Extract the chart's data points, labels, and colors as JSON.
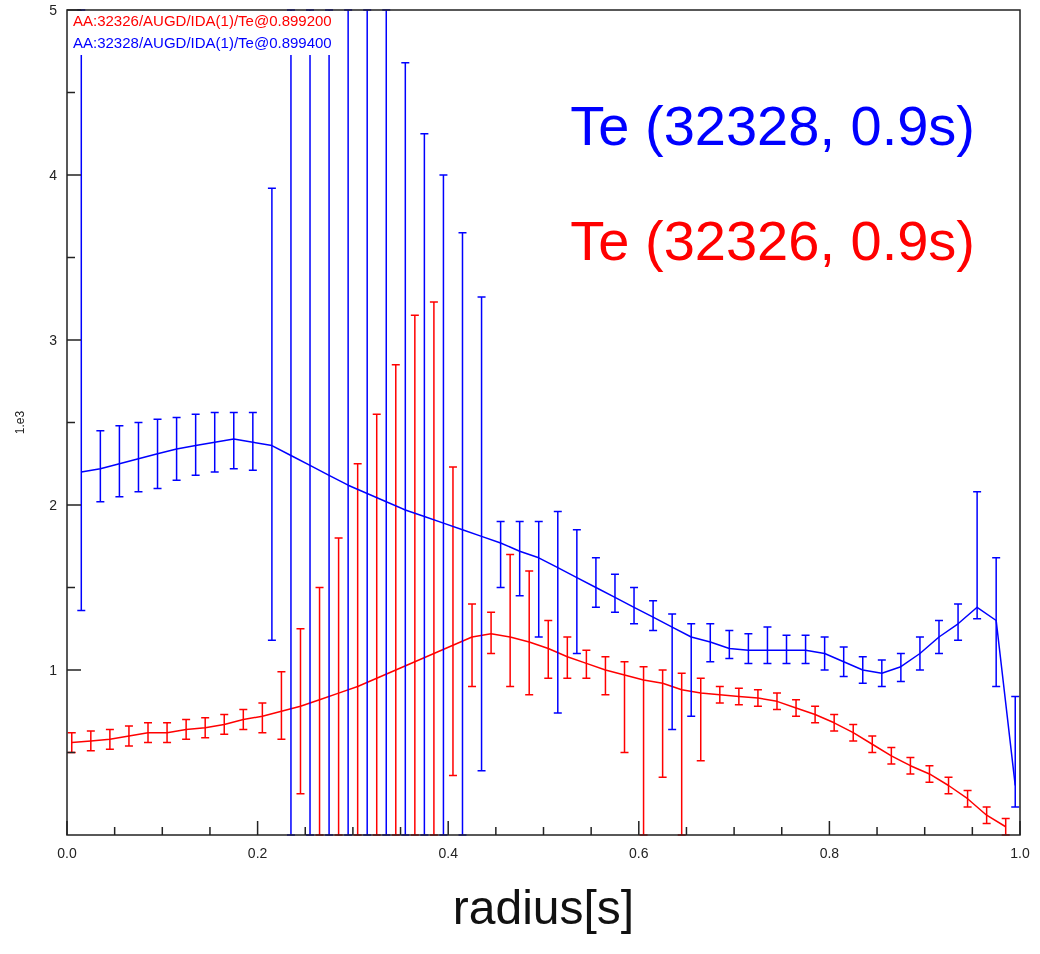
{
  "chart_data": {
    "type": "line",
    "xlabel": "radius[s]",
    "ylabel": "1.e3",
    "annotations": [
      "Te (32328, 0.9s)",
      "Te (32326, 0.9s)"
    ],
    "series": [
      {
        "name": "AA:32326/AUGD/IDA(1)/Te@0.899200",
        "color": "#ff0000",
        "x": [
          0.005,
          0.025,
          0.045,
          0.065,
          0.085,
          0.105,
          0.125,
          0.145,
          0.165,
          0.185,
          0.205,
          0.225,
          0.245,
          0.265,
          0.285,
          0.305,
          0.325,
          0.345,
          0.365,
          0.385,
          0.405,
          0.425,
          0.445,
          0.465,
          0.485,
          0.505,
          0.525,
          0.545,
          0.565,
          0.585,
          0.605,
          0.625,
          0.645,
          0.665,
          0.685,
          0.705,
          0.725,
          0.745,
          0.765,
          0.785,
          0.805,
          0.825,
          0.845,
          0.865,
          0.885,
          0.905,
          0.925,
          0.945,
          0.965,
          0.985
        ],
        "values": [
          0.56,
          0.57,
          0.58,
          0.6,
          0.62,
          0.62,
          0.64,
          0.65,
          0.67,
          0.7,
          0.72,
          0.75,
          0.78,
          0.82,
          0.86,
          0.9,
          0.95,
          1.0,
          1.05,
          1.1,
          1.15,
          1.2,
          1.22,
          1.2,
          1.17,
          1.13,
          1.08,
          1.04,
          1.0,
          0.97,
          0.94,
          0.92,
          0.88,
          0.86,
          0.85,
          0.84,
          0.83,
          0.81,
          0.77,
          0.73,
          0.68,
          0.62,
          0.55,
          0.48,
          0.42,
          0.37,
          0.3,
          0.22,
          0.12,
          0.05
        ],
        "errors": [
          0.06,
          0.06,
          0.06,
          0.06,
          0.06,
          0.06,
          0.06,
          0.06,
          0.06,
          0.06,
          [
            0.62,
            0.8
          ],
          [
            0.58,
            0.99
          ],
          [
            0.25,
            1.25
          ],
          [
            0,
            1.5
          ],
          [
            0,
            1.8
          ],
          [
            0,
            2.25
          ],
          [
            0,
            2.55
          ],
          [
            0,
            2.85
          ],
          [
            0,
            3.15
          ],
          [
            0,
            3.23
          ],
          [
            0.36,
            2.23
          ],
          [
            0.9,
            1.4
          ],
          [
            1.1,
            1.35
          ],
          [
            0.9,
            1.7
          ],
          [
            0.85,
            1.6
          ],
          [
            0.95,
            1.3
          ],
          [
            0.95,
            1.2
          ],
          [
            0.95,
            1.12
          ],
          [
            0.85,
            1.08
          ],
          [
            0.5,
            1.05
          ],
          [
            0,
            1.02
          ],
          [
            0.35,
            1.0
          ],
          [
            0,
            0.98
          ],
          [
            0.45,
            0.95
          ],
          0.05,
          0.05,
          0.05,
          0.05,
          0.05,
          0.05,
          0.05,
          0.05,
          0.05,
          0.05,
          0.05,
          0.05,
          0.05,
          0.05,
          0.05,
          0.05
        ]
      },
      {
        "name": "AA:32328/AUGD/IDA(1)/Te@0.899400",
        "color": "#0000ff",
        "x": [
          0.015,
          0.035,
          0.055,
          0.075,
          0.095,
          0.115,
          0.135,
          0.155,
          0.175,
          0.195,
          0.215,
          0.235,
          0.255,
          0.275,
          0.295,
          0.315,
          0.335,
          0.355,
          0.375,
          0.395,
          0.415,
          0.435,
          0.455,
          0.475,
          0.495,
          0.515,
          0.535,
          0.555,
          0.575,
          0.595,
          0.615,
          0.635,
          0.655,
          0.675,
          0.695,
          0.715,
          0.735,
          0.755,
          0.775,
          0.795,
          0.815,
          0.835,
          0.855,
          0.875,
          0.895,
          0.915,
          0.935,
          0.955,
          0.975,
          0.995
        ],
        "values": [
          2.2,
          2.22,
          2.25,
          2.28,
          2.31,
          2.34,
          2.36,
          2.38,
          2.4,
          2.38,
          2.36,
          2.3,
          2.24,
          2.18,
          2.12,
          2.07,
          2.02,
          1.97,
          1.93,
          1.89,
          1.85,
          1.81,
          1.77,
          1.72,
          1.68,
          1.62,
          1.56,
          1.5,
          1.44,
          1.38,
          1.32,
          1.26,
          1.2,
          1.17,
          1.13,
          1.12,
          1.12,
          1.12,
          1.12,
          1.1,
          1.05,
          1.0,
          0.98,
          1.02,
          1.1,
          1.2,
          1.28,
          1.38,
          1.3,
          0.3
        ],
        "errors": [
          [
            1.36,
            5
          ],
          [
            2.02,
            2.45
          ],
          [
            2.05,
            2.48
          ],
          [
            2.08,
            2.5
          ],
          [
            2.1,
            2.52
          ],
          [
            2.15,
            2.53
          ],
          [
            2.18,
            2.55
          ],
          [
            2.2,
            2.56
          ],
          [
            2.22,
            2.56
          ],
          [
            2.21,
            2.56
          ],
          [
            1.18,
            3.92
          ],
          [
            0,
            5
          ],
          [
            0,
            5
          ],
          [
            0,
            5
          ],
          [
            0,
            5
          ],
          [
            0,
            5
          ],
          [
            0,
            5
          ],
          [
            0,
            4.68
          ],
          [
            0,
            4.25
          ],
          [
            0,
            4.0
          ],
          [
            0,
            3.65
          ],
          [
            0.39,
            3.26
          ],
          [
            1.5,
            1.9
          ],
          [
            1.45,
            1.9
          ],
          [
            1.2,
            1.9
          ],
          [
            0.74,
            1.96
          ],
          [
            1.1,
            1.85
          ],
          [
            1.38,
            1.68
          ],
          [
            1.35,
            1.58
          ],
          [
            1.28,
            1.5
          ],
          [
            1.24,
            1.42
          ],
          [
            0.64,
            1.34
          ],
          [
            0.72,
            1.28
          ],
          [
            1.05,
            1.28
          ],
          [
            1.07,
            1.24
          ],
          [
            1.04,
            1.22
          ],
          [
            1.04,
            1.26
          ],
          [
            1.04,
            1.21
          ],
          [
            1.04,
            1.21
          ],
          [
            1.0,
            1.2
          ],
          [
            0.96,
            1.14
          ],
          [
            0.92,
            1.08
          ],
          [
            0.9,
            1.06
          ],
          [
            0.93,
            1.1
          ],
          [
            1.0,
            1.2
          ],
          [
            1.1,
            1.3
          ],
          [
            1.18,
            1.4
          ],
          [
            1.31,
            2.08
          ],
          [
            0.9,
            1.68
          ],
          [
            0.17,
            0.84
          ]
        ]
      }
    ],
    "xlim": [
      0,
      1
    ],
    "ylim": [
      0,
      5
    ],
    "xticks": [
      {
        "value": 0,
        "label": "0.0"
      },
      {
        "value": 0.05,
        "label": null
      },
      {
        "value": 0.1,
        "label": null
      },
      {
        "value": 0.15,
        "label": null
      },
      {
        "value": 0.2,
        "label": "0.2"
      },
      {
        "value": 0.25,
        "label": null
      },
      {
        "value": 0.3,
        "label": null
      },
      {
        "value": 0.35,
        "label": null
      },
      {
        "value": 0.4,
        "label": "0.4"
      },
      {
        "value": 0.45,
        "label": null
      },
      {
        "value": 0.5,
        "label": null
      },
      {
        "value": 0.55,
        "label": null
      },
      {
        "value": 0.6,
        "label": "0.6"
      },
      {
        "value": 0.65,
        "label": null
      },
      {
        "value": 0.7,
        "label": null
      },
      {
        "value": 0.75,
        "label": null
      },
      {
        "value": 0.8,
        "label": "0.8"
      },
      {
        "value": 0.85,
        "label": null
      },
      {
        "value": 0.9,
        "label": null
      },
      {
        "value": 0.95,
        "label": null
      },
      {
        "value": 1,
        "label": "1.0"
      }
    ],
    "yticks": [
      {
        "value": 0.5,
        "label": null
      },
      1,
      {
        "value": 1.5,
        "label": null
      },
      2,
      {
        "value": 2.5,
        "label": null
      },
      3,
      {
        "value": 3.5,
        "label": null
      },
      4,
      {
        "value": 4.5,
        "label": null
      },
      5
    ],
    "legend": "top left",
    "marker": "none",
    "line_style": "solid",
    "grid": false
  }
}
